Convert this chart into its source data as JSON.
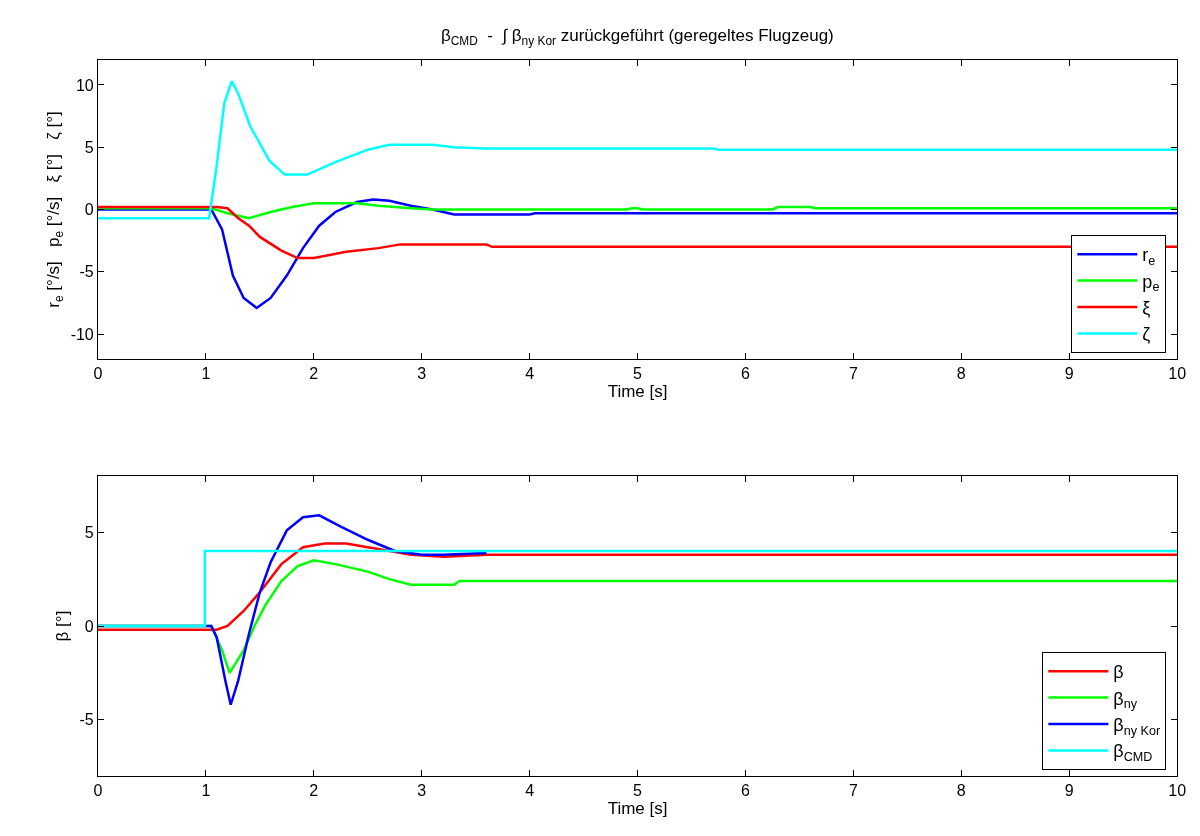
{
  "chart_data": [
    {
      "type": "line",
      "title": "β$_{CMD}$  -  ∫ β$_{ny Kor}$ zurückgeführt (geregeltes Flugzeug)",
      "xlabel": "Time [s]",
      "ylabel": "r$_{e}$ [°/s]   p$_{e}$ [°/s]   ξ [°]   ζ [°]",
      "xlim": [
        0,
        10
      ],
      "xticks": [
        0,
        1,
        2,
        3,
        4,
        5,
        6,
        7,
        8,
        9,
        10
      ],
      "ylim": [
        -12,
        12
      ],
      "yticks": [
        -10,
        -5,
        0,
        5,
        10
      ],
      "legend": "bottom right",
      "marker": "none",
      "line_style": "solid",
      "series": [
        {
          "name": "r$_{e}$",
          "color": "#0000ff",
          "x": [
            0,
            1.05,
            1.15,
            1.25,
            1.35,
            1.47,
            1.6,
            1.75,
            1.9,
            2.05,
            2.2,
            2.4,
            2.55,
            2.7,
            2.9,
            3.1,
            3.3,
            4.0,
            4.05,
            10
          ],
          "values": [
            0,
            0,
            -1.6,
            -5.3,
            -7.1,
            -7.9,
            -7.1,
            -5.3,
            -3.1,
            -1.3,
            -0.2,
            0.6,
            0.8,
            0.7,
            0.3,
            0,
            -0.4,
            -0.4,
            -0.3,
            -0.3
          ]
        },
        {
          "name": "p$_{e}$",
          "color": "#00ff00",
          "x": [
            0,
            1.05,
            1.2,
            1.4,
            1.6,
            1.8,
            2.0,
            2.4,
            2.6,
            2.9,
            3.1,
            4.9,
            4.95,
            5.0,
            5.05,
            6.25,
            6.3,
            6.6,
            6.65,
            10
          ],
          "values": [
            0.1,
            0.1,
            -0.3,
            -0.7,
            -0.2,
            0.2,
            0.5,
            0.5,
            0.3,
            0.1,
            0,
            0,
            0.1,
            0.1,
            0,
            0,
            0.2,
            0.2,
            0.1,
            0.1
          ]
        },
        {
          "name": "ξ",
          "color": "#ff0000",
          "x": [
            0,
            1.1,
            1.2,
            1.3,
            1.4,
            1.5,
            1.7,
            1.85,
            2.0,
            2.3,
            2.6,
            2.8,
            3.6,
            3.65,
            10
          ],
          "values": [
            0.2,
            0.2,
            0.1,
            -0.7,
            -1.3,
            -2.2,
            -3.3,
            -3.9,
            -3.9,
            -3.4,
            -3.1,
            -2.8,
            -2.8,
            -3.0,
            -3.0
          ]
        },
        {
          "name": "ζ",
          "color": "#00ffff",
          "x": [
            0,
            1.03,
            1.1,
            1.17,
            1.24,
            1.3,
            1.41,
            1.59,
            1.73,
            1.94,
            2.2,
            2.5,
            2.7,
            3.1,
            3.3,
            3.6,
            4.0,
            5.7,
            5.75,
            10
          ],
          "values": [
            -0.7,
            -0.7,
            3.5,
            8.5,
            10.3,
            9.3,
            6.7,
            3.9,
            2.8,
            2.8,
            3.8,
            4.8,
            5.2,
            5.2,
            5.0,
            4.9,
            4.9,
            4.9,
            4.8,
            4.8
          ]
        }
      ]
    },
    {
      "type": "line",
      "xlabel": "Time [s]",
      "ylabel": "β [°]",
      "xlim": [
        0,
        10
      ],
      "xticks": [
        0,
        1,
        2,
        3,
        4,
        5,
        6,
        7,
        8,
        9,
        10
      ],
      "ylim": [
        -8,
        8
      ],
      "yticks": [
        -5,
        0,
        5
      ],
      "legend": "bottom right",
      "marker": "none",
      "line_style": "solid",
      "series": [
        {
          "name": "β",
          "color": "#ff0000",
          "x": [
            0,
            1.1,
            1.2,
            1.35,
            1.5,
            1.7,
            1.9,
            2.1,
            2.3,
            2.5,
            2.7,
            2.9,
            3.2,
            3.6,
            10
          ],
          "values": [
            -0.2,
            -0.2,
            0,
            0.8,
            1.8,
            3.3,
            4.2,
            4.4,
            4.4,
            4.2,
            4.0,
            3.8,
            3.7,
            3.8,
            3.8
          ]
        },
        {
          "name": "β$_{ny}$",
          "color": "#00ff00",
          "x": [
            0,
            1.05,
            1.15,
            1.22,
            1.35,
            1.45,
            1.55,
            1.7,
            1.85,
            2.0,
            2.2,
            2.5,
            2.7,
            2.9,
            3.3,
            3.35,
            3.6,
            10
          ],
          "values": [
            0,
            0,
            -1.3,
            -2.5,
            -1.3,
            0,
            1.1,
            2.4,
            3.2,
            3.5,
            3.3,
            2.9,
            2.5,
            2.2,
            2.2,
            2.4,
            2.4,
            2.4
          ]
        },
        {
          "name": "β$_{ny Kor}$",
          "color": "#0000ff",
          "x": [
            0,
            1.05,
            1.1,
            1.18,
            1.23,
            1.3,
            1.4,
            1.5,
            1.6,
            1.75,
            1.9,
            2.05,
            2.25,
            2.5,
            2.75,
            3.0,
            3.2,
            3.6
          ],
          "values": [
            0,
            0,
            -0.6,
            -2.9,
            -4.2,
            -2.9,
            -0.4,
            1.8,
            3.4,
            5.1,
            5.8,
            5.9,
            5.3,
            4.6,
            4.0,
            3.8,
            3.8,
            3.9
          ]
        },
        {
          "name": "β$_{CMD}$",
          "color": "#00ffff",
          "x": [
            0,
            0.99,
            0.99,
            10
          ],
          "values": [
            0,
            0,
            4.0,
            4.0
          ]
        }
      ]
    }
  ]
}
